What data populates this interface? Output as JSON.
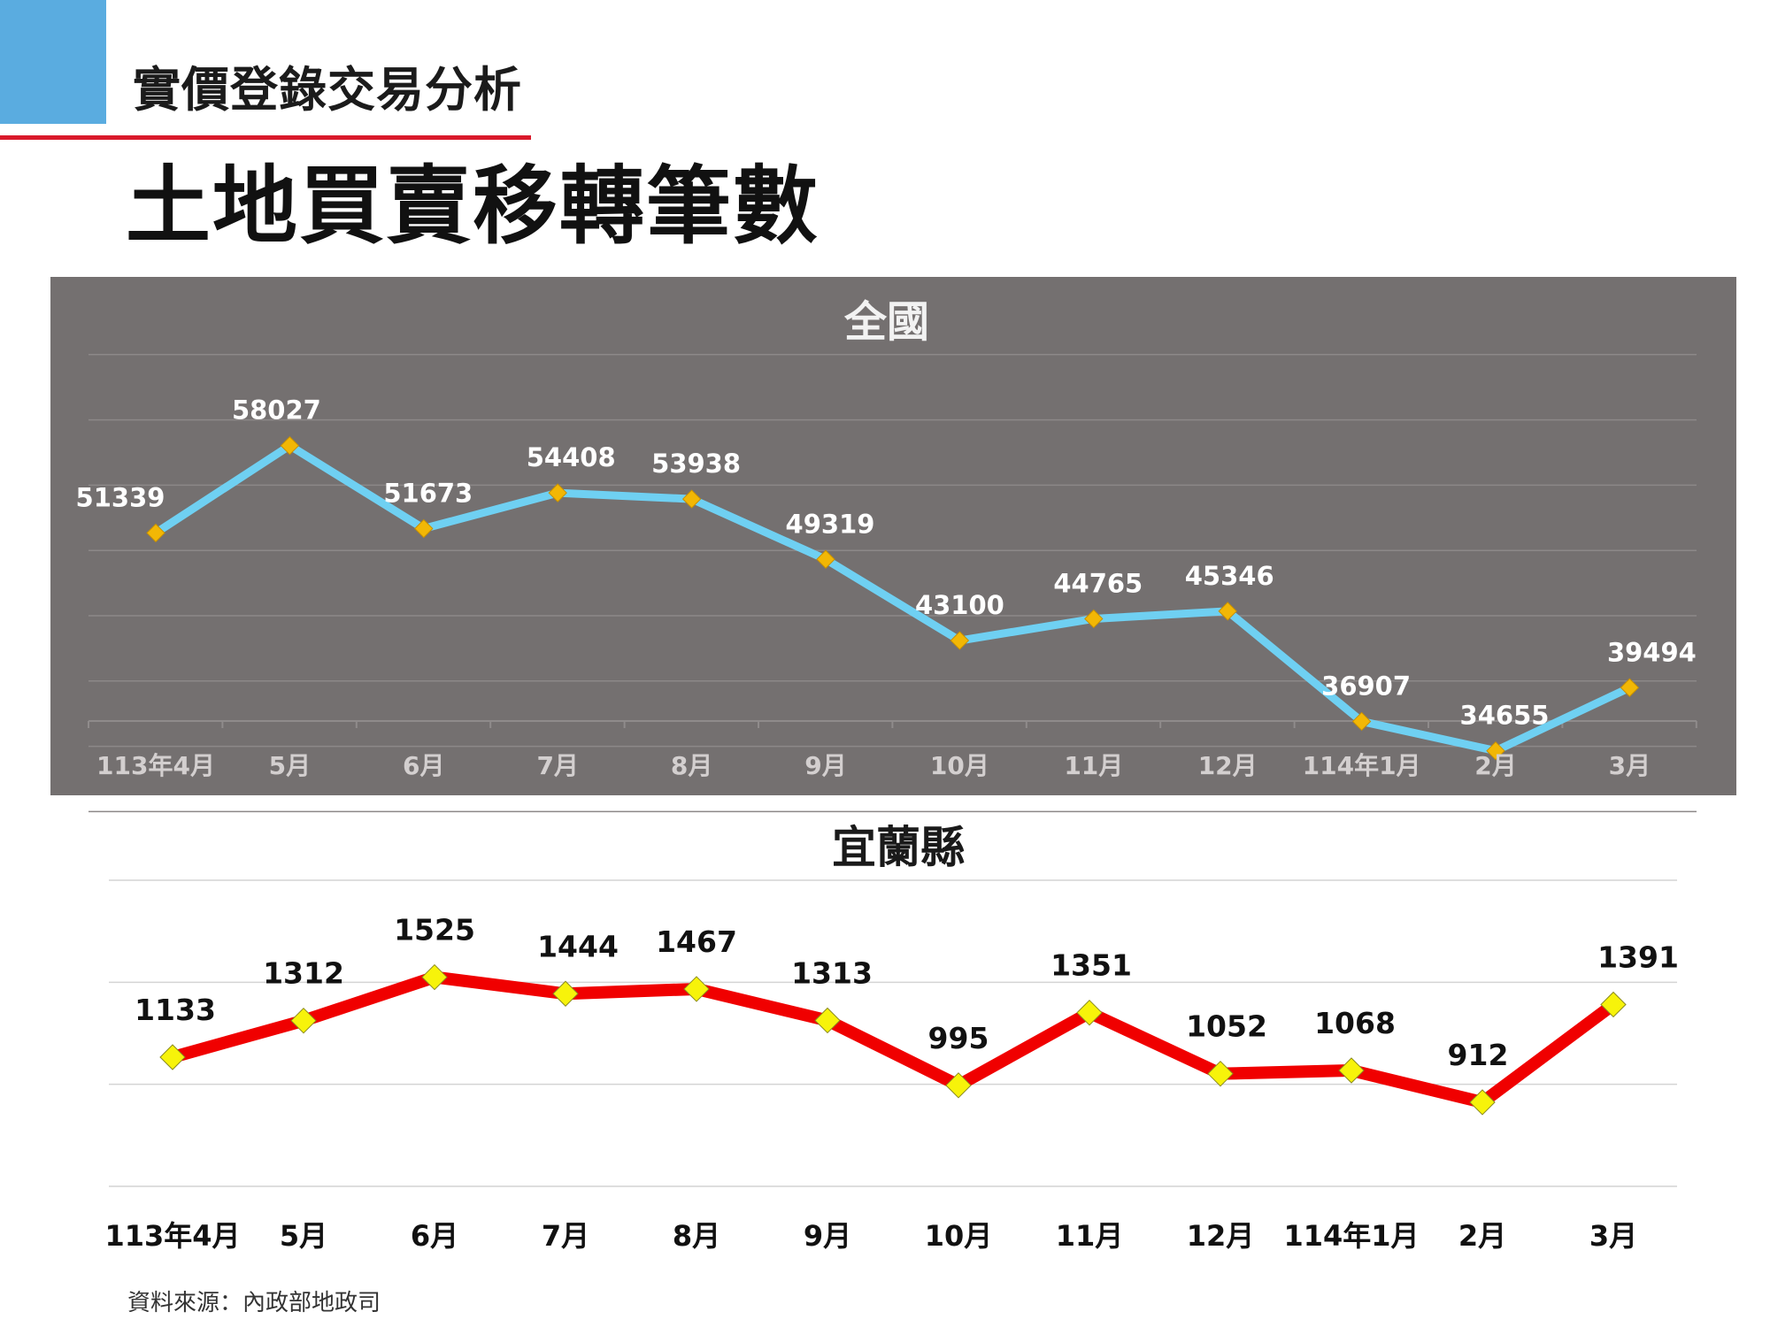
{
  "header": {
    "section_title": "實價登錄交易分析",
    "main_title": "土地買賣移轉筆數"
  },
  "colors": {
    "accent_blue": "#5aace0",
    "accent_red": "#d9192b",
    "panel_bg": "#747070",
    "national_line": "#6fd0f2",
    "national_marker": "#f2b705",
    "yilan_line": "#f00000",
    "yilan_marker": "#f7f30a"
  },
  "chart_data": [
    {
      "type": "line",
      "title": "全國",
      "categories": [
        "113年4月",
        "5月",
        "6月",
        "7月",
        "8月",
        "9月",
        "10月",
        "11月",
        "12月",
        "114年1月",
        "2月",
        "3月"
      ],
      "series": [
        {
          "values": [
            51339,
            58027,
            51673,
            54408,
            53938,
            49319,
            43100,
            44765,
            45346,
            36907,
            34655,
            39494
          ]
        }
      ],
      "ylim": [
        20000,
        70000
      ],
      "grid": true,
      "data_labels": true
    },
    {
      "type": "line",
      "title": "宜蘭縣",
      "categories": [
        "113年4月",
        "5月",
        "6月",
        "7月",
        "8月",
        "9月",
        "10月",
        "11月",
        "12月",
        "114年1月",
        "2月",
        "3月"
      ],
      "series": [
        {
          "values": [
            1133,
            1312,
            1525,
            1444,
            1467,
            1313,
            995,
            1351,
            1052,
            1068,
            912,
            1391
          ]
        }
      ],
      "ylim": [
        500,
        2000
      ],
      "grid": true,
      "data_labels": true
    }
  ],
  "footer": {
    "source": "資料來源：內政部地政司"
  }
}
